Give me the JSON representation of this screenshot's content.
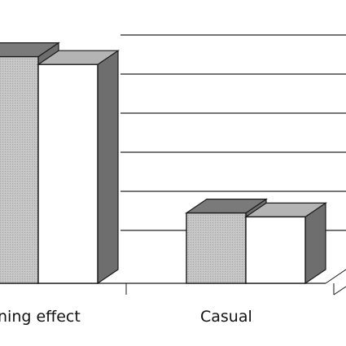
{
  "chart_data": {
    "type": "bar",
    "style": "3d-clustered",
    "categories": [
      "ning effect",
      "Casual"
    ],
    "series": [
      {
        "values": [
          5.8,
          1.8
        ]
      },
      {
        "values": [
          5.6,
          1.7
        ]
      }
    ],
    "ylim": [
      0,
      6.6
    ],
    "grid": true,
    "legend": "none",
    "colors": {
      "series_front": [
        "#bdbdbd",
        "#ffffff"
      ],
      "series_top": [
        "#7a7a7a",
        "#b4b4b4"
      ],
      "series_side": [
        "#6e6e6e",
        "#6e6e6e"
      ],
      "gridline": "#222222",
      "outline": "#1a1a1a"
    }
  }
}
